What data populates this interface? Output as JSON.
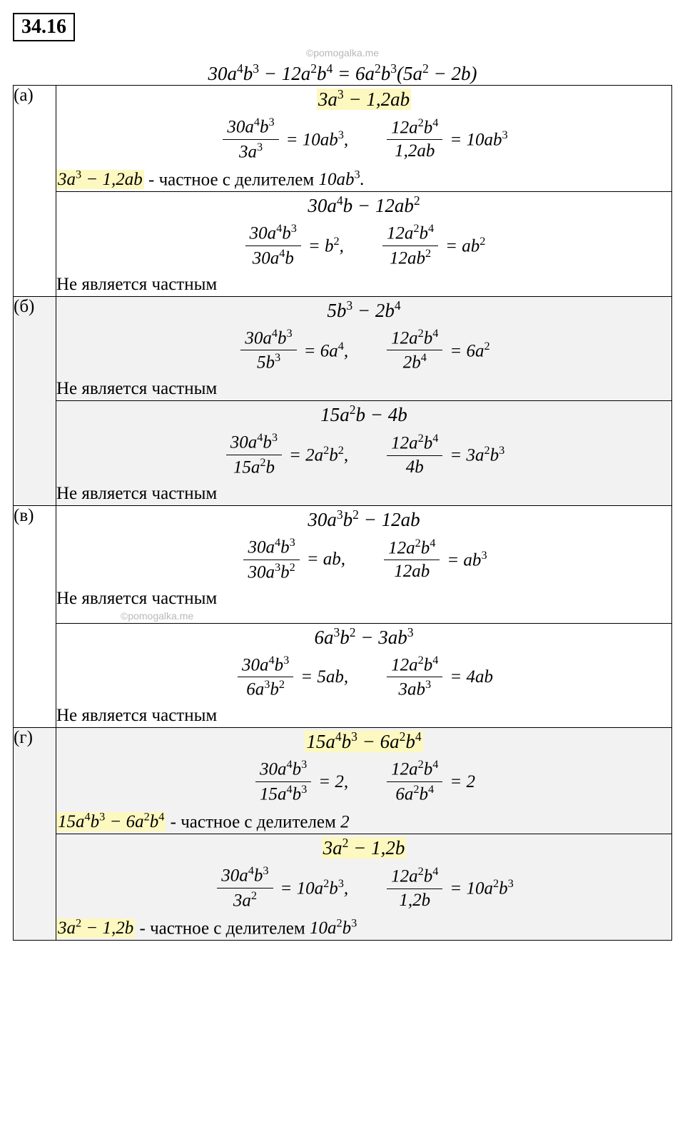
{
  "problem_number": "34.16",
  "watermark": "©pomogalka.me",
  "main_equation": "30a<sup>4</sup>b<sup>3</sup> − 12a<sup>2</sup>b<sup>4</sup> = 6a<sup>2</sup>b<sup>3</sup>(5a<sup>2</sup> − 2b)",
  "highlight_color": "#fdf8bf",
  "shaded_bg": "#f2f2f2",
  "border_color": "#000000",
  "font_family": "Cambria Math",
  "parts": [
    {
      "label": "(а)",
      "shaded": false,
      "subparts": [
        {
          "title": "3a<sup>3</sup> − 1,2ab",
          "title_highlight": true,
          "fracs": [
            {
              "num": "30a<sup>4</sup>b<sup>3</sup>",
              "den": "3a<sup>3</sup>",
              "rhs": "= 10ab<sup>3</sup>,"
            },
            {
              "num": "12a<sup>2</sup>b<sup>4</sup>",
              "den": "1,2ab",
              "rhs": "= 10ab<sup>3</sup>"
            }
          ],
          "conclusion_hl": "3a<sup>3</sup> − 1,2ab",
          "conclusion_text": " - частное с делителем 10ab<sup>3</sup>.",
          "is_quotient": true
        },
        {
          "title": "30a<sup>4</sup>b − 12ab<sup>2</sup>",
          "title_highlight": false,
          "fracs": [
            {
              "num": "30a<sup>4</sup>b<sup>3</sup>",
              "den": "30a<sup>4</sup>b",
              "rhs": "= b<sup>2</sup>,"
            },
            {
              "num": "12a<sup>2</sup>b<sup>4</sup>",
              "den": "12ab<sup>2</sup>",
              "rhs": "= ab<sup>2</sup>"
            }
          ],
          "conclusion_text": "Не является частным",
          "is_quotient": false
        }
      ]
    },
    {
      "label": "(б)",
      "shaded": true,
      "subparts": [
        {
          "title": "5b<sup>3</sup> − 2b<sup>4</sup>",
          "title_highlight": false,
          "fracs": [
            {
              "num": "30a<sup>4</sup>b<sup>3</sup>",
              "den": "5b<sup>3</sup>",
              "rhs": "= 6a<sup>4</sup>,"
            },
            {
              "num": "12a<sup>2</sup>b<sup>4</sup>",
              "den": "2b<sup>4</sup>",
              "rhs": "= 6a<sup>2</sup>"
            }
          ],
          "conclusion_text": "Не является частным",
          "is_quotient": false
        },
        {
          "title": "15a<sup>2</sup>b − 4b",
          "title_highlight": false,
          "fracs": [
            {
              "num": "30a<sup>4</sup>b<sup>3</sup>",
              "den": "15a<sup>2</sup>b",
              "rhs": "= 2a<sup>2</sup>b<sup>2</sup>,"
            },
            {
              "num": "12a<sup>2</sup>b<sup>4</sup>",
              "den": "4b",
              "rhs": "= 3a<sup>2</sup>b<sup>3</sup>"
            }
          ],
          "conclusion_text": "Не является частным",
          "is_quotient": false
        }
      ]
    },
    {
      "label": "(в)",
      "shaded": false,
      "watermark_after": true,
      "subparts": [
        {
          "title": "30a<sup>3</sup>b<sup>2</sup> − 12ab",
          "title_highlight": false,
          "fracs": [
            {
              "num": "30a<sup>4</sup>b<sup>3</sup>",
              "den": "30a<sup>3</sup>b<sup>2</sup>",
              "rhs": "= ab,"
            },
            {
              "num": "12a<sup>2</sup>b<sup>4</sup>",
              "den": "12ab",
              "rhs": "= ab<sup>3</sup>"
            }
          ],
          "conclusion_text": "Не является частным",
          "is_quotient": false,
          "watermark_after": true
        },
        {
          "title": "6a<sup>3</sup>b<sup>2</sup> − 3ab<sup>3</sup>",
          "title_highlight": false,
          "fracs": [
            {
              "num": "30a<sup>4</sup>b<sup>3</sup>",
              "den": "6a<sup>3</sup>b<sup>2</sup>",
              "rhs": "= 5ab,"
            },
            {
              "num": "12a<sup>2</sup>b<sup>4</sup>",
              "den": "3ab<sup>3</sup>",
              "rhs": "= 4ab"
            }
          ],
          "conclusion_text": "Не является частным",
          "is_quotient": false
        }
      ]
    },
    {
      "label": "(г)",
      "shaded": true,
      "watermark_before": true,
      "subparts": [
        {
          "title": "15a<sup>4</sup>b<sup>3</sup> − 6a<sup>2</sup>b<sup>4</sup>",
          "title_highlight": true,
          "fracs": [
            {
              "num": "30a<sup>4</sup>b<sup>3</sup>",
              "den": "15a<sup>4</sup>b<sup>3</sup>",
              "rhs": "= 2,"
            },
            {
              "num": "12a<sup>2</sup>b<sup>4</sup>",
              "den": "6a<sup>2</sup>b<sup>4</sup>",
              "rhs": "= 2"
            }
          ],
          "conclusion_hl": "15a<sup>4</sup>b<sup>3</sup> − 6a<sup>2</sup>b<sup>4</sup>",
          "conclusion_text": " - частное с делителем 2",
          "is_quotient": true
        },
        {
          "title": "3a<sup>2</sup> − 1,2b",
          "title_highlight": true,
          "fracs": [
            {
              "num": "30a<sup>4</sup>b<sup>3</sup>",
              "den": "3a<sup>2</sup>",
              "rhs": "= 10a<sup>2</sup>b<sup>3</sup>,"
            },
            {
              "num": "12a<sup>2</sup>b<sup>4</sup>",
              "den": "1,2b",
              "rhs": "= 10a<sup>2</sup>b<sup>3</sup>"
            }
          ],
          "conclusion_hl": "3a<sup>2</sup> − 1,2b",
          "conclusion_text": " - частное с делителем 10a<sup>2</sup>b<sup>3</sup>",
          "is_quotient": true
        }
      ]
    }
  ]
}
